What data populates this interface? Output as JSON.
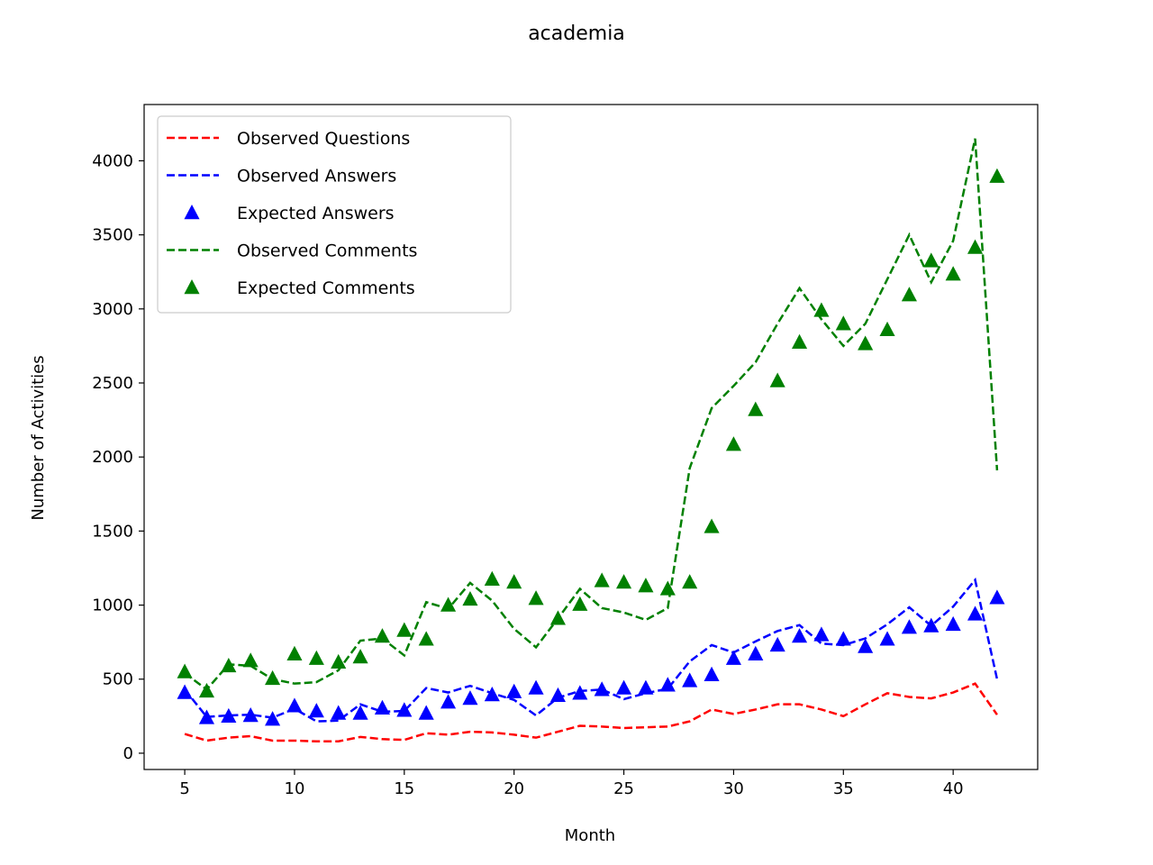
{
  "chart_data": {
    "type": "line",
    "title": "academia",
    "xlabel": "Month",
    "ylabel": "Number of Activities",
    "xlim": [
      3.15,
      43.85
    ],
    "ylim": [
      -110,
      4380
    ],
    "xticks": [
      5,
      10,
      15,
      20,
      25,
      30,
      35,
      40
    ],
    "yticks": [
      0,
      500,
      1000,
      1500,
      2000,
      2500,
      3000,
      3500,
      4000
    ],
    "grid": false,
    "legend_position": "top-left",
    "x": [
      5,
      6,
      7,
      8,
      9,
      10,
      11,
      12,
      13,
      14,
      15,
      16,
      17,
      18,
      19,
      20,
      21,
      22,
      23,
      24,
      25,
      26,
      27,
      28,
      29,
      30,
      31,
      32,
      33,
      34,
      35,
      36,
      37,
      38,
      39,
      40,
      41,
      42
    ],
    "series": [
      {
        "name": "Observed Questions",
        "style": "dashed-line",
        "color": "#ff0000",
        "values": [
          130,
          85,
          105,
          115,
          85,
          85,
          80,
          80,
          110,
          95,
          90,
          135,
          125,
          145,
          140,
          125,
          105,
          145,
          185,
          180,
          170,
          175,
          180,
          215,
          295,
          265,
          295,
          330,
          330,
          295,
          250,
          330,
          405,
          380,
          370,
          410,
          470,
          260
        ]
      },
      {
        "name": "Observed Answers",
        "style": "dashed-line",
        "color": "#0000ff",
        "values": [
          430,
          245,
          255,
          260,
          240,
          300,
          215,
          220,
          330,
          280,
          285,
          440,
          410,
          455,
          405,
          360,
          255,
          375,
          420,
          430,
          365,
          405,
          435,
          620,
          730,
          680,
          755,
          825,
          865,
          740,
          730,
          775,
          870,
          985,
          860,
          990,
          1170,
          500
        ]
      },
      {
        "name": "Expected Answers",
        "style": "triangle-marker",
        "color": "#0000ff",
        "values": [
          410,
          240,
          250,
          255,
          230,
          320,
          285,
          270,
          270,
          305,
          290,
          270,
          345,
          370,
          395,
          415,
          440,
          390,
          405,
          430,
          440,
          440,
          460,
          490,
          530,
          640,
          670,
          730,
          790,
          800,
          770,
          720,
          770,
          850,
          860,
          870,
          940,
          1050
        ]
      },
      {
        "name": "Observed Comments",
        "style": "dashed-line",
        "color": "#008000",
        "values": [
          540,
          430,
          600,
          590,
          500,
          470,
          480,
          560,
          760,
          775,
          660,
          1020,
          975,
          1150,
          1030,
          840,
          715,
          910,
          1110,
          980,
          950,
          900,
          980,
          1925,
          2330,
          2480,
          2640,
          2900,
          3140,
          2930,
          2750,
          2900,
          3200,
          3500,
          3180,
          3460,
          4150,
          1910
        ]
      },
      {
        "name": "Expected Comments",
        "style": "triangle-marker",
        "color": "#008000",
        "values": [
          550,
          420,
          590,
          625,
          505,
          670,
          640,
          615,
          650,
          790,
          830,
          770,
          1000,
          1040,
          1175,
          1155,
          1045,
          910,
          1005,
          1165,
          1155,
          1130,
          1110,
          1155,
          1530,
          2085,
          2320,
          2515,
          2775,
          2990,
          2900,
          2765,
          2860,
          3095,
          3325,
          3235,
          3415,
          3895
        ]
      }
    ]
  }
}
